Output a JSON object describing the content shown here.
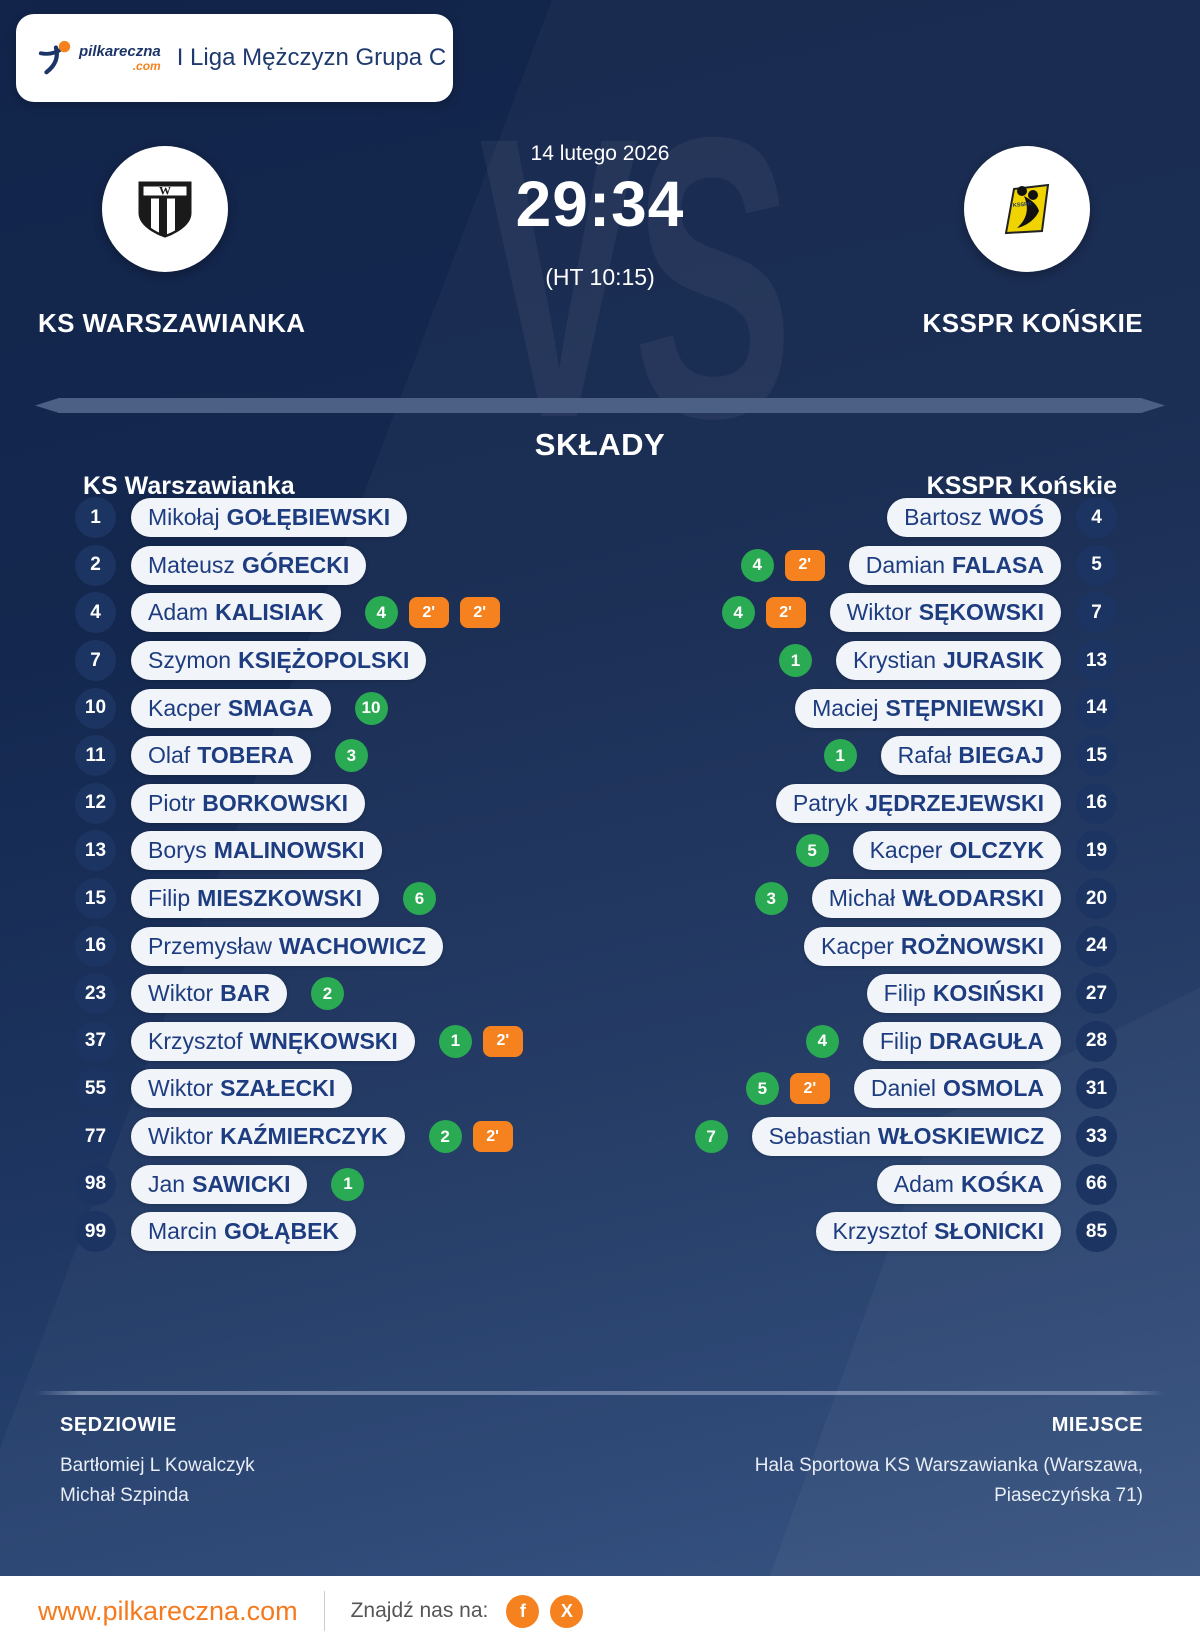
{
  "header": {
    "brand_name": "pilkareczna",
    "brand_tld": ".com",
    "league_title": "I Liga Mężczyzn Grupa C"
  },
  "match": {
    "date": "14 lutego 2026",
    "score": "29:34",
    "halftime": "(HT 10:15)",
    "vs_watermark": "VS",
    "home_team_name": "KS WARSZAWIANKA",
    "away_team_name": "KSSPR KOŃSKIE"
  },
  "lineups": {
    "section_title": "SKŁADY",
    "penalty_label": "2'",
    "home": {
      "team_name": "KS Warszawianka",
      "players": [
        {
          "number": "1",
          "first_name": "Mikołaj",
          "last_name": "GOŁĘBIEWSKI",
          "goals": null,
          "penalties_2min": 0
        },
        {
          "number": "2",
          "first_name": "Mateusz",
          "last_name": "GÓRECKI",
          "goals": null,
          "penalties_2min": 0
        },
        {
          "number": "4",
          "first_name": "Adam",
          "last_name": "KALISIAK",
          "goals": 4,
          "penalties_2min": 2
        },
        {
          "number": "7",
          "first_name": "Szymon",
          "last_name": "KSIĘŻOPOLSKI",
          "goals": null,
          "penalties_2min": 0
        },
        {
          "number": "10",
          "first_name": "Kacper",
          "last_name": "SMAGA",
          "goals": 10,
          "penalties_2min": 0
        },
        {
          "number": "11",
          "first_name": "Olaf",
          "last_name": "TOBERA",
          "goals": 3,
          "penalties_2min": 0
        },
        {
          "number": "12",
          "first_name": "Piotr",
          "last_name": "BORKOWSKI",
          "goals": null,
          "penalties_2min": 0
        },
        {
          "number": "13",
          "first_name": "Borys",
          "last_name": "MALINOWSKI",
          "goals": null,
          "penalties_2min": 0
        },
        {
          "number": "15",
          "first_name": "Filip",
          "last_name": "MIESZKOWSKI",
          "goals": 6,
          "penalties_2min": 0
        },
        {
          "number": "16",
          "first_name": "Przemysław",
          "last_name": "WACHOWICZ",
          "goals": null,
          "penalties_2min": 0
        },
        {
          "number": "23",
          "first_name": "Wiktor",
          "last_name": "BAR",
          "goals": 2,
          "penalties_2min": 0
        },
        {
          "number": "37",
          "first_name": "Krzysztof",
          "last_name": "WNĘKOWSKI",
          "goals": 1,
          "penalties_2min": 1
        },
        {
          "number": "55",
          "first_name": "Wiktor",
          "last_name": "SZAŁECKI",
          "goals": null,
          "penalties_2min": 0
        },
        {
          "number": "77",
          "first_name": "Wiktor",
          "last_name": "KAŹMIERCZYK",
          "goals": 2,
          "penalties_2min": 1
        },
        {
          "number": "98",
          "first_name": "Jan",
          "last_name": "SAWICKI",
          "goals": 1,
          "penalties_2min": 0
        },
        {
          "number": "99",
          "first_name": "Marcin",
          "last_name": "GOŁĄBEK",
          "goals": null,
          "penalties_2min": 0
        }
      ]
    },
    "away": {
      "team_name": "KSSPR Końskie",
      "players": [
        {
          "number": "4",
          "first_name": "Bartosz",
          "last_name": "WOŚ",
          "goals": null,
          "penalties_2min": 0
        },
        {
          "number": "5",
          "first_name": "Damian",
          "last_name": "FALASA",
          "goals": 4,
          "penalties_2min": 1
        },
        {
          "number": "7",
          "first_name": "Wiktor",
          "last_name": "SĘKOWSKI",
          "goals": 4,
          "penalties_2min": 1
        },
        {
          "number": "13",
          "first_name": "Krystian",
          "last_name": "JURASIK",
          "goals": 1,
          "penalties_2min": 0
        },
        {
          "number": "14",
          "first_name": "Maciej",
          "last_name": "STĘPNIEWSKI",
          "goals": null,
          "penalties_2min": 0
        },
        {
          "number": "15",
          "first_name": "Rafał",
          "last_name": "BIEGAJ",
          "goals": 1,
          "penalties_2min": 0
        },
        {
          "number": "16",
          "first_name": "Patryk",
          "last_name": "JĘDRZEJEWSKI",
          "goals": null,
          "penalties_2min": 0
        },
        {
          "number": "19",
          "first_name": "Kacper",
          "last_name": "OLCZYK",
          "goals": 5,
          "penalties_2min": 0
        },
        {
          "number": "20",
          "first_name": "Michał",
          "last_name": "WŁODARSKI",
          "goals": 3,
          "penalties_2min": 0
        },
        {
          "number": "24",
          "first_name": "Kacper",
          "last_name": "ROŻNOWSKI",
          "goals": null,
          "penalties_2min": 0
        },
        {
          "number": "27",
          "first_name": "Filip",
          "last_name": "KOSIŃSKI",
          "goals": null,
          "penalties_2min": 0
        },
        {
          "number": "28",
          "first_name": "Filip",
          "last_name": "DRAGUŁA",
          "goals": 4,
          "penalties_2min": 0
        },
        {
          "number": "31",
          "first_name": "Daniel",
          "last_name": "OSMOLA",
          "goals": 5,
          "penalties_2min": 1
        },
        {
          "number": "33",
          "first_name": "Sebastian",
          "last_name": "WŁOSKIEWICZ",
          "goals": 7,
          "penalties_2min": 0
        },
        {
          "number": "66",
          "first_name": "Adam",
          "last_name": "KOŚKA",
          "goals": null,
          "penalties_2min": 0
        },
        {
          "number": "85",
          "first_name": "Krzysztof",
          "last_name": "SŁONICKI",
          "goals": null,
          "penalties_2min": 0
        }
      ]
    }
  },
  "officials": {
    "referees_label": "SĘDZIOWIE",
    "referees": [
      "Bartłomiej L Kowalczyk",
      "Michał Szpinda"
    ],
    "venue_label": "MIEJSCE",
    "venue": "Hala Sportowa KS Warszawianka (Warszawa, Piaseczyńska 71)"
  },
  "footer": {
    "website": "www.pilkareczna.com",
    "find_us_label": "Znajdź nas na:",
    "social": [
      {
        "name": "facebook",
        "glyph": "f"
      },
      {
        "name": "x",
        "glyph": "X"
      }
    ]
  },
  "colors": {
    "background_navy": "#15294f",
    "goal_badge_green": "#2aaa52",
    "penalty_badge_orange": "#f5821f",
    "brand_orange": "#f57a1d",
    "pill_text_navy": "#1e3d80"
  }
}
